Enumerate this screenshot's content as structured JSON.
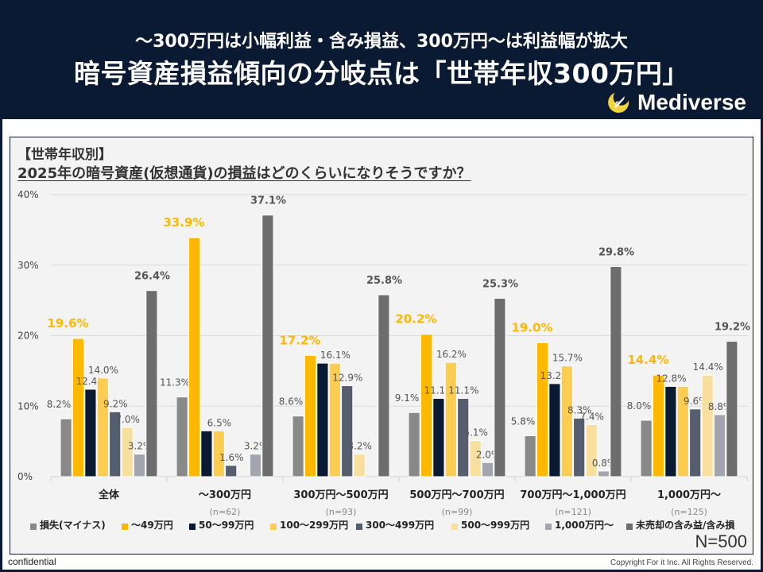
{
  "header": {
    "subtitle": "～300万円は小幅利益・含み損益、300万円～は利益幅が拡大",
    "title": "暗号資産損益傾向の分岐点は「世帯年収300万円」",
    "logo_text": "Mediverse",
    "logo_icon": "rocket-crescent-icon"
  },
  "panel": {
    "tag": "【世帯年収別】",
    "question": "2025年の暗号資産(仮想通貨)の損益はどのくらいになりそうですか？",
    "total_n": "N=500"
  },
  "footer": {
    "left": "confidential",
    "right": "Copyright For it Inc. All Rights Reserved."
  },
  "colors": {
    "header_bg": "#0b1a33",
    "highlight_label": "#ffb800",
    "panel_bg": "#f3f3f3"
  },
  "chart_data": {
    "type": "bar",
    "title": "2025年の暗号資産(仮想通貨)の損益はどのくらいになりそうですか？",
    "xlabel": "",
    "ylabel": "",
    "ylim": [
      0,
      40
    ],
    "yticks": [
      0,
      10,
      20,
      30,
      40
    ],
    "ytick_labels": [
      "0%",
      "10%",
      "20%",
      "30%",
      "40%"
    ],
    "grid": true,
    "legend_position": "bottom",
    "categories": [
      "全体",
      "～300万円",
      "300万円～500万円",
      "500万円～700万円",
      "700万円～1,000万円",
      "1,000万円～"
    ],
    "category_n": [
      "",
      "(n=62)",
      "(n=93)",
      "(n=99)",
      "(n=121)",
      "(n=125)"
    ],
    "series": [
      {
        "name": "損失(マイナス)",
        "color": "#898989",
        "values": [
          8.2,
          11.3,
          8.6,
          9.1,
          5.8,
          8.0
        ]
      },
      {
        "name": "～49万円",
        "color": "#ffb800",
        "values": [
          19.6,
          33.9,
          17.2,
          20.2,
          19.0,
          14.4
        ],
        "highlight": true
      },
      {
        "name": "50～99万円",
        "color": "#0b1a33",
        "values": [
          12.4,
          6.5,
          16.1,
          11.1,
          13.2,
          12.8
        ]
      },
      {
        "name": "100～299万円",
        "color": "#fccd50",
        "values": [
          14.0,
          6.5,
          16.1,
          16.2,
          15.7,
          12.8
        ]
      },
      {
        "name": "300～499万円",
        "color": "#565e6e",
        "values": [
          9.2,
          1.6,
          12.9,
          11.1,
          8.3,
          9.6
        ]
      },
      {
        "name": "500～999万円",
        "color": "#f8df9e",
        "values": [
          7.0,
          0,
          3.2,
          5.1,
          7.4,
          14.4
        ]
      },
      {
        "name": "1,000万円～",
        "color": "#a2a5ad",
        "values": [
          3.2,
          3.2,
          0,
          2.0,
          0.8,
          8.8
        ]
      },
      {
        "name": "未売却の含み益/含み損",
        "color": "#6d6d6d",
        "values": [
          26.4,
          37.1,
          25.8,
          25.3,
          29.8,
          19.2
        ],
        "bold_label": true
      }
    ],
    "data_labels": [
      [
        "8.2%",
        "19.6%",
        "12.4%",
        "14.0%",
        "9.2%",
        "7.0%",
        "3.2%",
        "26.4%"
      ],
      [
        "11.3%",
        "33.9%",
        "",
        "6.5%",
        "1.6%",
        "",
        "3.2%",
        "37.1%"
      ],
      [
        "8.6%",
        "17.2%",
        "",
        "16.1%",
        "12.9%",
        "3.2%",
        "",
        "25.8%"
      ],
      [
        "9.1%",
        "20.2%",
        "11.1%",
        "16.2%",
        "11.1%",
        "5.1%",
        "2.0%",
        "25.3%"
      ],
      [
        "5.8%",
        "19.0%",
        "13.2%",
        "15.7%",
        "8.3%",
        "7.4%",
        "0.8%",
        "29.8%"
      ],
      [
        "8.0%",
        "14.4%",
        "12.8%",
        "",
        "9.6%",
        "14.4%",
        "8.8%",
        "19.2%"
      ]
    ]
  }
}
